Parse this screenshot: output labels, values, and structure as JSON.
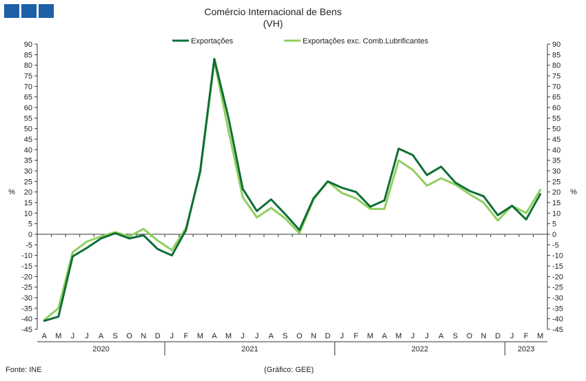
{
  "chart_data": {
    "type": "line",
    "title": "Comércio Internacional de Bens",
    "subtitle": "(VH)",
    "ylabel_left": "%",
    "ylabel_right": "%",
    "ylim": [
      -45,
      90
    ],
    "ytick_step": 5,
    "x": [
      "A",
      "M",
      "J",
      "J",
      "A",
      "S",
      "O",
      "N",
      "D",
      "J",
      "F",
      "M",
      "A",
      "M",
      "J",
      "J",
      "A",
      "S",
      "O",
      "N",
      "D",
      "J",
      "F",
      "M",
      "A",
      "M",
      "J",
      "J",
      "A",
      "S",
      "O",
      "N",
      "D",
      "J",
      "F",
      "M"
    ],
    "years": [
      {
        "label": "2020",
        "start": 0,
        "end": 8
      },
      {
        "label": "2021",
        "start": 9,
        "end": 20
      },
      {
        "label": "2022",
        "start": 21,
        "end": 32
      },
      {
        "label": "2023",
        "start": 33,
        "end": 35
      }
    ],
    "series": [
      {
        "name": "Exportações",
        "color": "#0e6e35",
        "values": [
          -41,
          -39,
          -10.5,
          -6.5,
          -2,
          0.5,
          -2,
          -0.5,
          -7,
          -10,
          2,
          30,
          83,
          55,
          21.5,
          11,
          16.5,
          9.5,
          2,
          17,
          25,
          22,
          20,
          13,
          16,
          40.5,
          37.5,
          28,
          32,
          24.5,
          20.5,
          18,
          9,
          13.5,
          7,
          19
        ]
      },
      {
        "name": "Exportações exc. Comb.Lubrificantes",
        "color": "#8fcf5e",
        "values": [
          -40.5,
          -35,
          -8.5,
          -3.5,
          -1,
          1,
          -1,
          2.5,
          -3,
          -7.5,
          3,
          29,
          82,
          49,
          17.5,
          8,
          12.5,
          7.5,
          0.5,
          16.5,
          25,
          19.5,
          17,
          12,
          12,
          35,
          30.5,
          23,
          26.5,
          23.5,
          19,
          15,
          6.5,
          13.5,
          10,
          21
        ]
      }
    ],
    "grid": false,
    "legend_position": "top-center"
  },
  "footer": {
    "source": "Fonte: INE",
    "note": "(Gráfico: GEE)"
  }
}
